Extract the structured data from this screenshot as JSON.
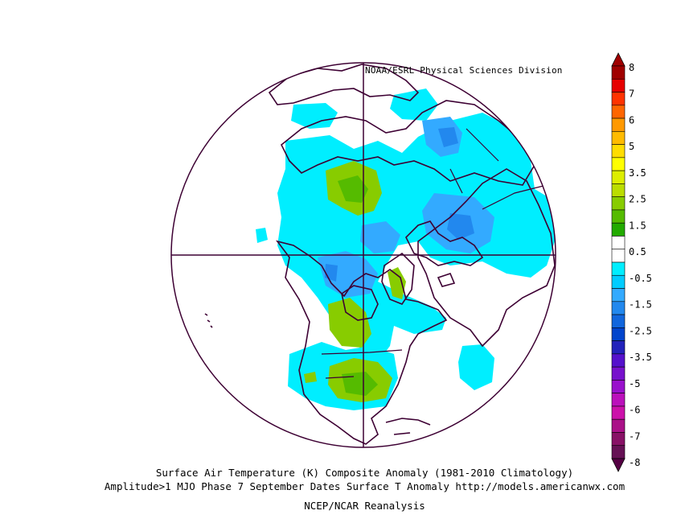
{
  "header": {
    "credit": "NOAA/ESRL Physical Sciences Division"
  },
  "footer": {
    "line1": "Surface Air Temperature (K) Composite Anomaly (1981-2010 Climatology)",
    "line2": "Amplitude>1 MJO Phase 7 September Dates Surface T Anomaly http://models.americanwx.com",
    "line3": "NCEP/NCAR Reanalysis"
  },
  "colorbar": {
    "labels": [
      "8",
      "7",
      "6",
      "5",
      "3.5",
      "2.5",
      "1.5",
      "0.5",
      "-0.5",
      "-1.5",
      "-2.5",
      "-3.5",
      "-5",
      "-6",
      "-7",
      "-8"
    ],
    "colors": [
      "#a00000",
      "#e60000",
      "#ff3300",
      "#ff6600",
      "#ff9900",
      "#ffbb00",
      "#ffdd00",
      "#ffff00",
      "#ddee00",
      "#bbdd00",
      "#88cc00",
      "#55bb00",
      "#22aa00",
      "#ffffff",
      "#ffffff",
      "#00eeff",
      "#00ccff",
      "#33aaff",
      "#2288ee",
      "#1166dd",
      "#0044cc",
      "#2222bb",
      "#5511cc",
      "#7711cc",
      "#9911cc",
      "#bb11bb",
      "#cc11aa",
      "#aa1188",
      "#881166",
      "#661155"
    ],
    "top_color": "#a00000",
    "bottom_color": "#550044"
  },
  "map": {
    "projection": "north-polar-stereographic",
    "variable": "surface-air-temperature-anomaly",
    "land_outline_color": "#3d0033",
    "frame_color": "#3d0033"
  }
}
